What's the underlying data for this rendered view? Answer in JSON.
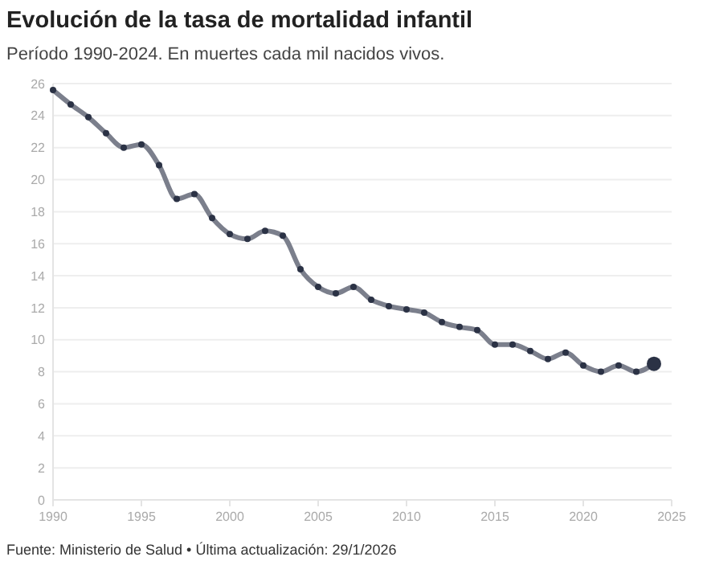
{
  "chart_data": {
    "type": "line",
    "title": "Evolución de la tasa de mortalidad infantil",
    "subtitle": "Período 1990-2024. En muertes cada mil nacidos vivos.",
    "annotations": [
      "Fuente: Ministerio de Salud • Última actualización: 29/1/2026"
    ],
    "x": [
      1990,
      1991,
      1992,
      1993,
      1994,
      1995,
      1996,
      1997,
      1998,
      1999,
      2000,
      2001,
      2002,
      2003,
      2004,
      2005,
      2006,
      2007,
      2008,
      2009,
      2010,
      2011,
      2012,
      2013,
      2014,
      2015,
      2016,
      2017,
      2018,
      2019,
      2020,
      2021,
      2022,
      2023,
      2024
    ],
    "series": [
      {
        "color": "#7b7f8c",
        "values": [
          25.6,
          24.7,
          23.9,
          22.9,
          22.0,
          22.2,
          20.9,
          18.8,
          19.1,
          17.6,
          16.6,
          16.3,
          16.8,
          16.5,
          14.4,
          13.3,
          12.9,
          13.3,
          12.5,
          12.1,
          11.9,
          11.7,
          11.1,
          10.8,
          10.6,
          9.7,
          9.7,
          9.3,
          8.8,
          9.2,
          8.4,
          8.0,
          8.4,
          8.0,
          8.5
        ]
      }
    ],
    "xlim": [
      1990,
      2025
    ],
    "xticks": [
      1990,
      1995,
      2000,
      2005,
      2010,
      2015,
      2020,
      2025
    ],
    "ylim": [
      0,
      26
    ],
    "yticks": [
      0,
      2,
      4,
      6,
      8,
      10,
      12,
      14,
      16,
      18,
      20,
      22,
      24,
      26
    ],
    "grid": "y",
    "marker": "circle",
    "line_style": "solid"
  }
}
